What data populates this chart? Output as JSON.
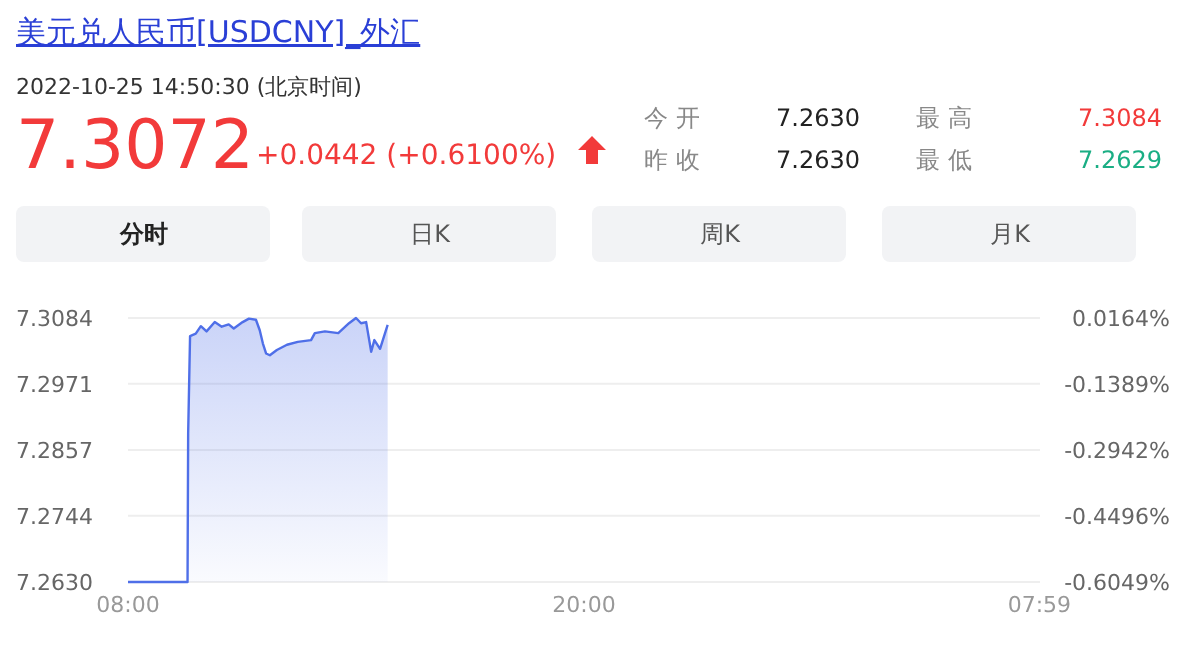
{
  "chart_data": {
    "type": "area",
    "title": "美元兑人民币[USDCNY]_外汇",
    "subtitle": "2022-10-25 14:50:30 (北京时间)",
    "annotations": [
      "7.3072",
      "+0.0442 (+0.6100%)",
      "今 开",
      "7.2630",
      "最 高",
      "7.3084",
      "昨 收",
      "7.2630",
      "最 低",
      "7.2629",
      "分时",
      "日K",
      "周K",
      "月K"
    ],
    "x": [
      "2022-10-25T08:00",
      "2022-10-25T09:34",
      "2022-10-25T09:35",
      "2022-10-25T09:38",
      "2022-10-25T09:47",
      "2022-10-25T09:55",
      "2022-10-25T10:04",
      "2022-10-25T10:17",
      "2022-10-25T10:28",
      "2022-10-25T10:39",
      "2022-10-25T10:47",
      "2022-10-25T11:01",
      "2022-10-25T11:11",
      "2022-10-25T11:22",
      "2022-10-25T11:28",
      "2022-10-25T11:33",
      "2022-10-25T11:38",
      "2022-10-25T11:44",
      "2022-10-25T11:55",
      "2022-10-25T12:11",
      "2022-10-25T12:28",
      "2022-10-25T12:49",
      "2022-10-25T12:55",
      "2022-10-25T13:11",
      "2022-10-25T13:32",
      "2022-10-25T13:49",
      "2022-10-25T14:00",
      "2022-10-25T14:08",
      "2022-10-25T14:16",
      "2022-10-25T14:24",
      "2022-10-25T14:29",
      "2022-10-25T14:38",
      "2022-10-25T14:50"
    ],
    "series": [
      {
        "color": "#4f6fe8",
        "values": [
          7.263,
          7.263,
          7.2885,
          7.3053,
          7.3057,
          7.307,
          7.3061,
          7.3077,
          7.3069,
          7.3073,
          7.3066,
          7.3077,
          7.3083,
          7.3081,
          7.3063,
          7.304,
          7.3023,
          7.302,
          7.3029,
          7.3038,
          7.3043,
          7.3046,
          7.3058,
          7.3061,
          7.3058,
          7.3075,
          7.3084,
          7.3075,
          7.3077,
          7.3026,
          7.3046,
          7.3031,
          7.3072
        ]
      }
    ],
    "xlim": [
      "2022-10-25T08:00",
      "2022-10-26T08:00"
    ],
    "xticks": [
      {
        "value": "2022-10-25T08:00",
        "label": "08:00"
      },
      {
        "value": "2022-10-25T20:00",
        "label": "20:00"
      },
      {
        "value": "2022-10-26T07:59",
        "label": "07:59"
      }
    ],
    "ylim": [
      7.263,
      7.3084
    ],
    "yticks": [
      {
        "value": 7.3084,
        "label": "7.3084"
      },
      {
        "value": 7.2971,
        "label": "7.2971"
      },
      {
        "value": 7.2857,
        "label": "7.2857"
      },
      {
        "value": 7.2744,
        "label": "7.2744"
      },
      {
        "value": 7.263,
        "label": "7.2630"
      }
    ],
    "y2lim": [
      -0.6049,
      0.0164
    ],
    "y2ticks": [
      {
        "value": 0.0164,
        "label": "0.0164%"
      },
      {
        "value": -0.1389,
        "label": "-0.1389%"
      },
      {
        "value": -0.2942,
        "label": "-0.2942%"
      },
      {
        "value": -0.4496,
        "label": "-0.4496%"
      },
      {
        "value": -0.6049,
        "label": "-0.6049%"
      }
    ],
    "grid": "y"
  }
}
